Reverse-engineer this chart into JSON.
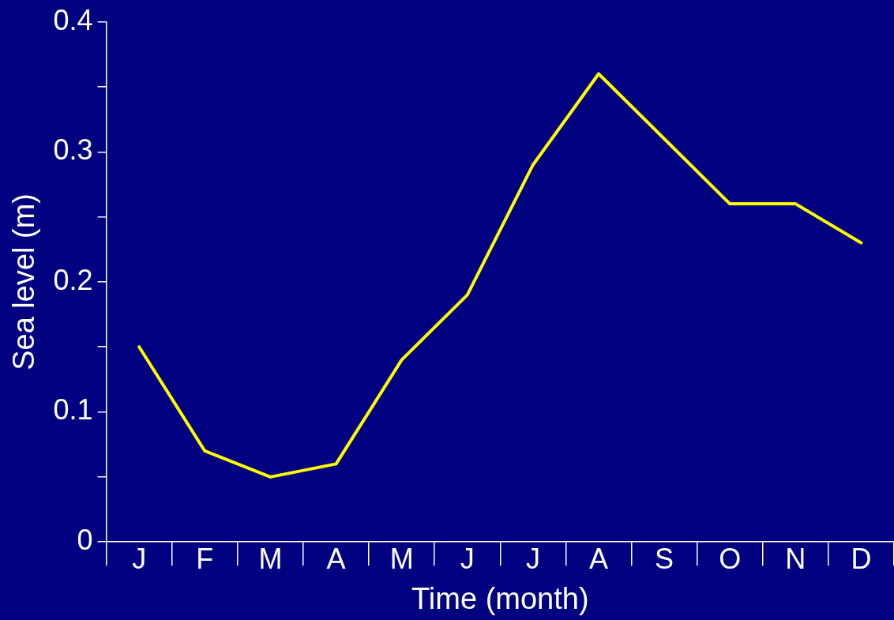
{
  "chart_data": {
    "type": "line",
    "xlabel": "Time (month)",
    "ylabel": "Sea level (m)",
    "categories": [
      "J",
      "F",
      "M",
      "A",
      "M",
      "J",
      "J",
      "A",
      "S",
      "O",
      "N",
      "D"
    ],
    "series": [
      {
        "color": "#ffff00",
        "values": [
          0.15,
          0.07,
          0.05,
          0.06,
          0.14,
          0.19,
          0.29,
          0.36,
          0.31,
          0.26,
          0.26,
          0.23
        ]
      }
    ],
    "ylim": [
      0,
      0.4
    ],
    "yticks": [
      0,
      {
        "value": 0.05,
        "label": null
      },
      0.1,
      {
        "value": 0.15,
        "label": null
      },
      0.2,
      {
        "value": 0.25,
        "label": null
      },
      0.3,
      {
        "value": 0.35,
        "label": null
      },
      0.4
    ],
    "grid": false,
    "legend": false,
    "marker": "none",
    "line_style": "solid"
  }
}
